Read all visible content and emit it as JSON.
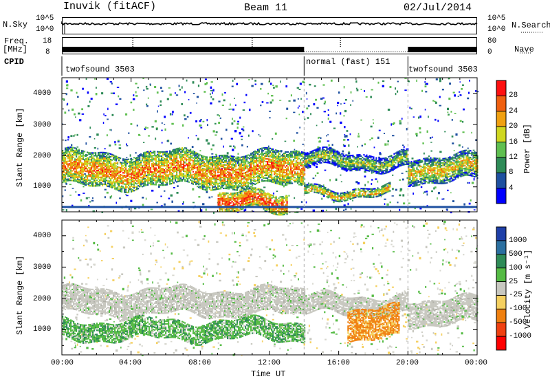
{
  "header": {
    "station": "Inuvik (fitACF)",
    "beam": "Beam 11",
    "date": "02/Jul/2014"
  },
  "left_labels": {
    "nsky": "N.Sky",
    "nsky_ticks": [
      "10^5",
      "10^0"
    ],
    "freq": "Freq.",
    "freq_unit": "[MHz]",
    "freq_ticks": [
      "18",
      "8"
    ],
    "cpid": "CPID"
  },
  "right_labels": {
    "nsearch": "N.Search",
    "nsearch_ticks": [
      "10^5",
      "10^0"
    ],
    "nave_ticks": [
      "80",
      "0"
    ],
    "nave": "Nave"
  },
  "cpid_segments": [
    {
      "label": "twofsound 3503",
      "start": "00:00",
      "end": "14:00"
    },
    {
      "label": "normal (fast) 151",
      "start": "14:00",
      "end": "20:00"
    },
    {
      "label": "twofsound 3503",
      "start": "20:00",
      "end": "24:00"
    }
  ],
  "x_axis": {
    "label": "Time UT",
    "ticks": [
      "00:00",
      "04:00",
      "08:00",
      "12:00",
      "16:00",
      "20:00",
      "00:00"
    ]
  },
  "power_panel": {
    "ylabel": "Slant Range [km]",
    "yticks": [
      "1000",
      "2000",
      "3000",
      "4000"
    ],
    "colorbar_label": "Power [dB]",
    "colorbar_ticks": [
      "4",
      "8",
      "12",
      "16",
      "20",
      "24",
      "28"
    ],
    "colors": [
      "#0000ff",
      "#1e50a0",
      "#2e8b57",
      "#5fbf50",
      "#cfd720",
      "#f0a010",
      "#f06010",
      "#ff1010"
    ]
  },
  "velocity_panel": {
    "ylabel": "Slant Range [km]",
    "yticks": [
      "1000",
      "2000",
      "3000",
      "4000"
    ],
    "colorbar_label": "Velocity [m s⁻¹]",
    "colorbar_ticks": [
      "1000",
      "500",
      "100",
      "25",
      "-25",
      "-100",
      "-500",
      "-1000"
    ],
    "colors": [
      "#1e3fa8",
      "#2a6fa0",
      "#2e8b57",
      "#55bb44",
      "#c8c8c0",
      "#f5d060",
      "#f08010",
      "#f04010",
      "#ff0000"
    ]
  },
  "chart_data": {
    "type": "heatmap",
    "title": "Inuvik (fitACF) Beam 11 02/Jul/2014",
    "xlabel": "Time UT",
    "ylabel": "Slant Range [km]",
    "x_range_hours": [
      0,
      24
    ],
    "y_range_km": [
      200,
      4500
    ],
    "cpid_changes_hours": [
      14,
      20
    ],
    "power_bands": [
      {
        "t0": 0,
        "t1": 14,
        "range_km": [
          1000,
          2100
        ],
        "power_db": 24
      },
      {
        "t0": 9,
        "t1": 13,
        "range_km": [
          200,
          800
        ],
        "power_db": 28
      },
      {
        "t0": 14,
        "t1": 20,
        "range_km": [
          1600,
          2100
        ],
        "power_db": 16
      },
      {
        "t0": 14,
        "t1": 19,
        "range_km": [
          700,
          1000
        ],
        "power_db": 20
      },
      {
        "t0": 20,
        "t1": 24,
        "range_km": [
          1200,
          2000
        ],
        "power_db": 20
      }
    ],
    "velocity_bands": [
      {
        "t0": 0,
        "t1": 14,
        "range_km": [
          1500,
          2300
        ],
        "velocity": 0
      },
      {
        "t0": 0,
        "t1": 14,
        "range_km": [
          700,
          1300
        ],
        "velocity": 100
      },
      {
        "t0": 14,
        "t1": 20,
        "range_km": [
          1500,
          2100
        ],
        "velocity": 0
      },
      {
        "t0": 16.5,
        "t1": 19.5,
        "range_km": [
          700,
          1700
        ],
        "velocity": -300
      },
      {
        "t0": 20,
        "t1": 24,
        "range_km": [
          1200,
          2000
        ],
        "velocity": 0
      }
    ]
  }
}
